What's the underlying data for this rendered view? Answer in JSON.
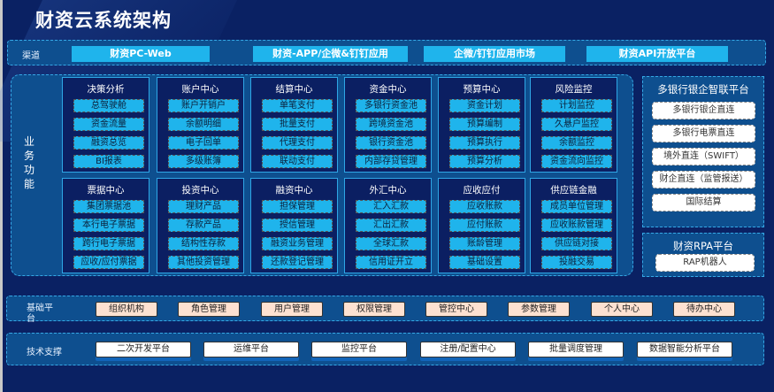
{
  "title": "财资云系统架构",
  "channel": {
    "label": "渠道",
    "items": [
      "财资PC-Web",
      "财资-APP/企微&钉钉应用",
      "企微/钉钉应用市场",
      "财资API开放平台"
    ]
  },
  "business": {
    "label": "业务功能",
    "modules": [
      {
        "title": "决策分析",
        "items": [
          "总驾驶舱",
          "资金流量",
          "融资总览",
          "BI报表"
        ]
      },
      {
        "title": "账户中心",
        "items": [
          "账户开销户",
          "余额明细",
          "电子回单",
          "多级账簿"
        ]
      },
      {
        "title": "结算中心",
        "items": [
          "单笔支付",
          "批量支付",
          "代理支付",
          "联动支付"
        ]
      },
      {
        "title": "资金中心",
        "items": [
          "多银行资金池",
          "跨境资金池",
          "银行资金池",
          "内部存贷管理"
        ]
      },
      {
        "title": "预算中心",
        "items": [
          "资金计划",
          "预算编制",
          "预算执行",
          "预算分析"
        ]
      },
      {
        "title": "风险监控",
        "items": [
          "计划监控",
          "久悬户监控",
          "余额监控",
          "资金流向监控"
        ]
      },
      {
        "title": "票据中心",
        "items": [
          "集团票据池",
          "本行电子票据",
          "跨行电子票据",
          "应收/应付票据"
        ]
      },
      {
        "title": "投资中心",
        "items": [
          "理财产品",
          "存款产品",
          "结构性存款",
          "其他投资管理"
        ]
      },
      {
        "title": "融资中心",
        "items": [
          "担保管理",
          "授信管理",
          "融资业务管理",
          "还款登记管理"
        ]
      },
      {
        "title": "外汇中心",
        "items": [
          "汇入汇款",
          "汇出汇款",
          "全球汇款",
          "信用证开立"
        ]
      },
      {
        "title": "应收应付",
        "items": [
          "应收账款",
          "应付账款",
          "账龄管理",
          "基础设置"
        ]
      },
      {
        "title": "供应链金融",
        "items": [
          "成员单位管理",
          "应收账款管理",
          "供应链对接",
          "投融交易"
        ]
      }
    ]
  },
  "bank_platform": {
    "title": "多银行银企智联平台",
    "items": [
      "多银行银企直连",
      "多银行电票直连",
      "境外直连（SWIFT）",
      "财企直连（监管报送）",
      "国际结算"
    ]
  },
  "rpa_platform": {
    "title": "财资RPA平台",
    "items": [
      "RAP机器人"
    ]
  },
  "base_platform": {
    "label": "基础平台",
    "items": [
      "组织机构",
      "角色管理",
      "用户管理",
      "权限管理",
      "管控中心",
      "参数管理",
      "个人中心",
      "待办中心"
    ]
  },
  "tech_support": {
    "label": "技术支撑",
    "items": [
      "二次开发平台",
      "运维平台",
      "监控平台",
      "注册/配置中心",
      "批量调度管理",
      "数据智能分析平台"
    ]
  },
  "colors": {
    "background": "#0a2163",
    "panel": "#0e4f8f",
    "item": "#1fb4ec",
    "base_item": "#fde1d1"
  }
}
